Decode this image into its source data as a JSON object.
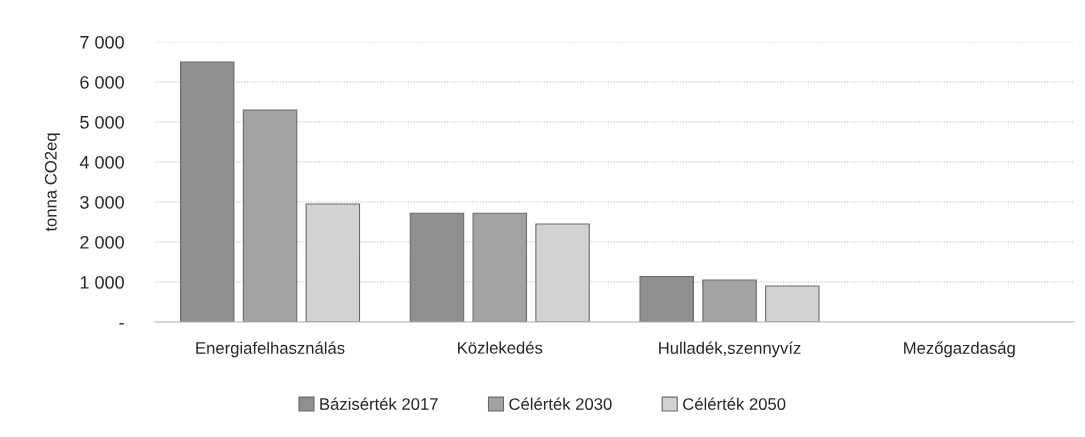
{
  "chart_data": {
    "type": "bar",
    "ylabel": "tonna CO2eq",
    "categories": [
      "Energiafelhasználás",
      "Közlekedés",
      "Hulladék,szennyvíz",
      "Mezőgazdaság"
    ],
    "series": [
      {
        "name": "Bázisérték 2017",
        "color": "#8f8f8f",
        "values": [
          6500,
          2720,
          1140,
          null
        ]
      },
      {
        "name": "Célérték 2030",
        "color": "#a3a3a3",
        "values": [
          5300,
          2720,
          1050,
          null
        ]
      },
      {
        "name": "Célérték 2050",
        "color": "#d2d2d2",
        "values": [
          2950,
          2450,
          900,
          null
        ]
      }
    ],
    "ylim": [
      0,
      7000
    ],
    "yticks": [
      {
        "value": 0,
        "label": "-"
      },
      {
        "value": 1000,
        "label": "1 000"
      },
      {
        "value": 2000,
        "label": "2 000"
      },
      {
        "value": 3000,
        "label": "3 000"
      },
      {
        "value": 4000,
        "label": "4 000"
      },
      {
        "value": 5000,
        "label": "5 000"
      },
      {
        "value": 6000,
        "label": "6 000"
      },
      {
        "value": 7000,
        "label": "7 000"
      }
    ],
    "grid": "y",
    "legend": "bottom"
  }
}
